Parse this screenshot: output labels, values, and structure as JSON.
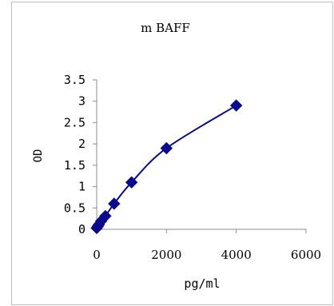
{
  "chart_data": {
    "type": "line",
    "title": "m BAFF",
    "xlabel": "pg/ml",
    "ylabel": "OD",
    "xlim": [
      0,
      6000
    ],
    "ylim": [
      0,
      3.5
    ],
    "x_ticks": [
      0,
      2000,
      4000,
      6000
    ],
    "y_ticks": [
      0,
      0.5,
      1,
      1.5,
      2,
      2.5,
      3,
      3.5
    ],
    "x_tick_labels": [
      "0",
      "2000",
      "4000",
      "6000"
    ],
    "y_tick_labels": [
      "0",
      "0.5",
      "1",
      "1.5",
      "2",
      "2.5",
      "3",
      "3.5"
    ],
    "grid": false,
    "legend": "none",
    "series": [
      {
        "x": [
          0,
          31.25,
          62.5,
          125,
          250,
          500,
          1000,
          2000,
          4000
        ],
        "y": [
          0.03,
          0.07,
          0.11,
          0.19,
          0.31,
          0.6,
          1.1,
          1.9,
          2.9
        ],
        "color": "#0a0a8a",
        "marker": "diamond",
        "smooth": true
      }
    ]
  }
}
